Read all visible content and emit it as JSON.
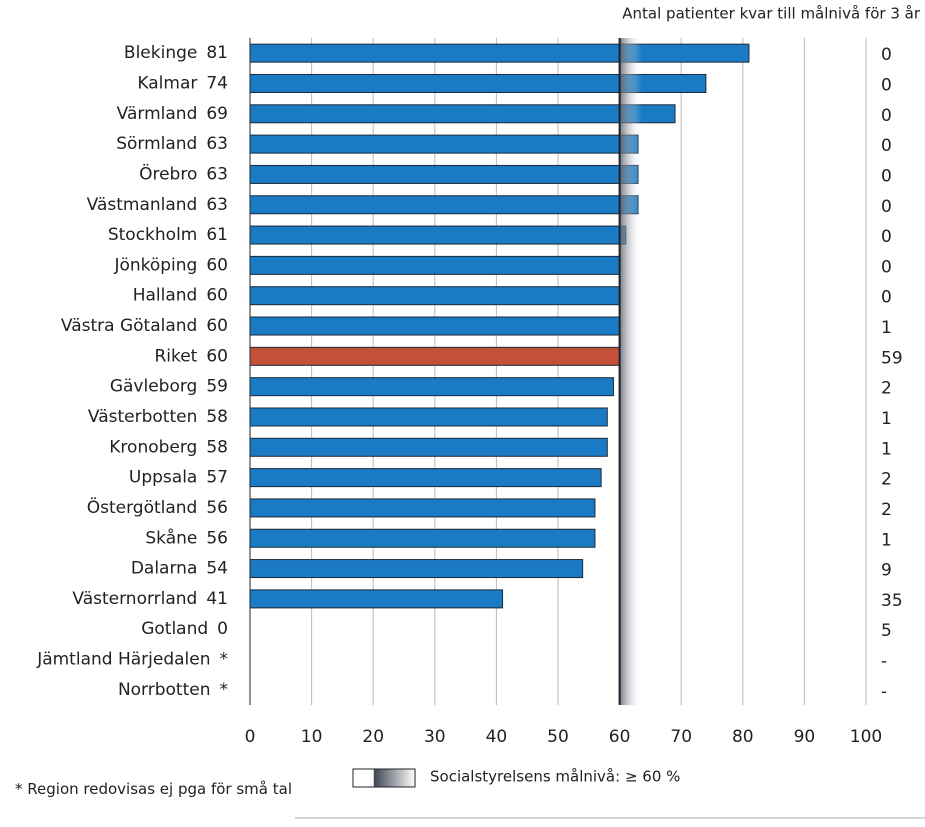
{
  "chart_data": {
    "type": "bar",
    "orientation": "horizontal",
    "title": "Antal patienter kvar till målnivå för 3 år",
    "categories": [
      "Blekinge",
      "Kalmar",
      "Värmland",
      "Sörmland",
      "Örebro",
      "Västmanland",
      "Stockholm",
      "Jönköping",
      "Halland",
      "Västra Götaland",
      "Riket",
      "Gävleborg",
      "Västerbotten",
      "Kronoberg",
      "Uppsala",
      "Östergötland",
      "Skåne",
      "Dalarna",
      "Västernorrland",
      "Gotland",
      "Jämtland Härjedalen",
      "Norrbotten"
    ],
    "values": [
      81,
      74,
      69,
      63,
      63,
      63,
      61,
      60,
      60,
      60,
      60,
      59,
      58,
      58,
      57,
      56,
      56,
      54,
      41,
      0,
      null,
      null
    ],
    "value_labels": [
      "81",
      "74",
      "69",
      "63",
      "63",
      "63",
      "61",
      "60",
      "60",
      "60",
      "60",
      "59",
      "58",
      "58",
      "57",
      "56",
      "56",
      "54",
      "41",
      "0",
      "*",
      "*"
    ],
    "color": "#1a7bc4",
    "highlight": {
      "category": "Riket",
      "color": "#c5503a"
    },
    "right_column": [
      "0",
      "0",
      "0",
      "0",
      "0",
      "0",
      "0",
      "0",
      "0",
      "1",
      "59",
      "2",
      "1",
      "1",
      "2",
      "2",
      "1",
      "9",
      "35",
      "5",
      "-",
      "-"
    ],
    "target": 60,
    "legend_label": "Socialstyrelsens målnivå: ≥ 60 %",
    "footnote": "* Region redovisas ej pga för små tal",
    "xlim": [
      0,
      100
    ],
    "xticks": [
      0,
      10,
      20,
      30,
      40,
      50,
      60,
      70,
      80,
      90,
      100
    ],
    "grid": true
  }
}
